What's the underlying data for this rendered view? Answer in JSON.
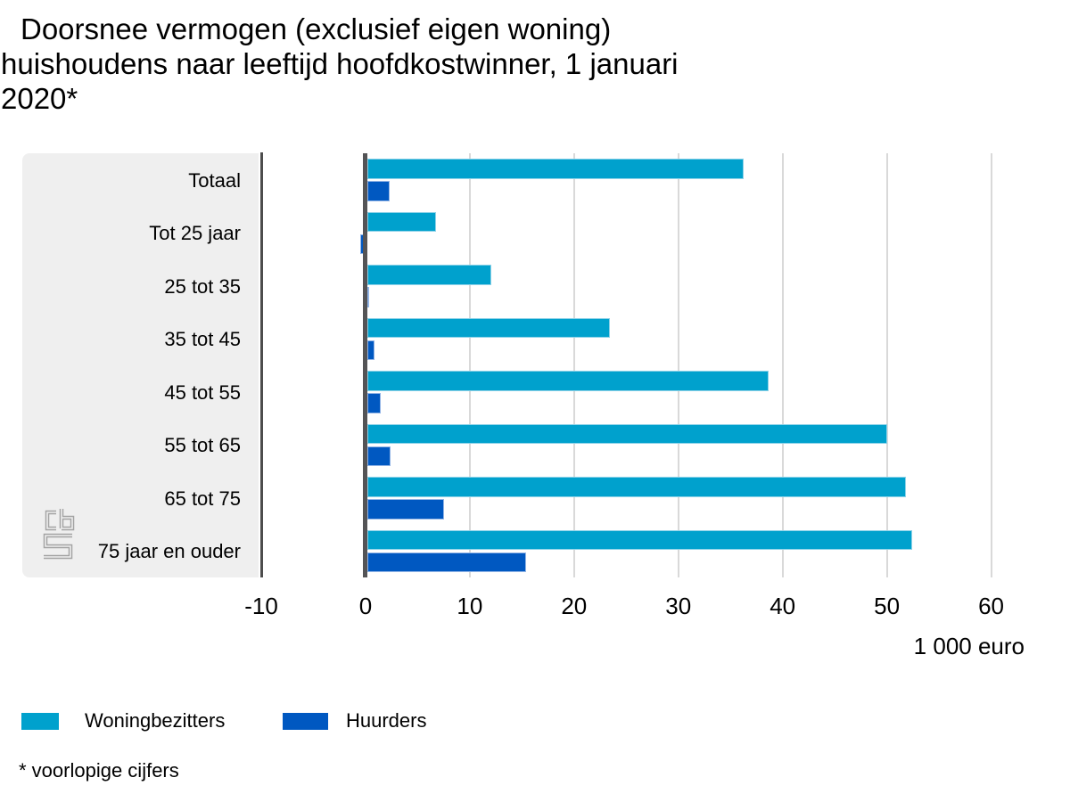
{
  "title_lines": [
    "Doorsnee vermogen (exclusief eigen woning)",
    "huishoudens naar leeftijd hoofdkostwinner, 1 januari",
    "2020*"
  ],
  "chart_data": {
    "type": "bar",
    "orientation": "horizontal",
    "categories": [
      "Totaal",
      "Tot 25 jaar",
      "25 tot 35",
      "35 tot 45",
      "45 tot 55",
      "55 tot 65",
      "65 tot 75",
      "75 jaar en ouder"
    ],
    "series": [
      {
        "name": "Woningbezitters",
        "color": "#00a1cd",
        "border_color": "#8ed2e8",
        "values": [
          36.3,
          6.8,
          12.1,
          23.4,
          38.7,
          50.0,
          51.8,
          52.4
        ]
      },
      {
        "name": "Huurders",
        "color": "#0058c1",
        "border_color": "#93b5e6",
        "values": [
          2.3,
          -0.5,
          0.1,
          0.9,
          1.5,
          2.4,
          7.5,
          15.4
        ]
      }
    ],
    "x_axis": {
      "ticks": [
        -10,
        0,
        10,
        20,
        30,
        40,
        50,
        60
      ],
      "min": -10,
      "max": 64.4,
      "unit_label": "1 000 euro",
      "grid": true
    },
    "legend_position": "bottom-left",
    "footnote": "* voorlopige cijfers"
  },
  "logo": {
    "name": "CBS",
    "color": "#a3a3a3"
  }
}
